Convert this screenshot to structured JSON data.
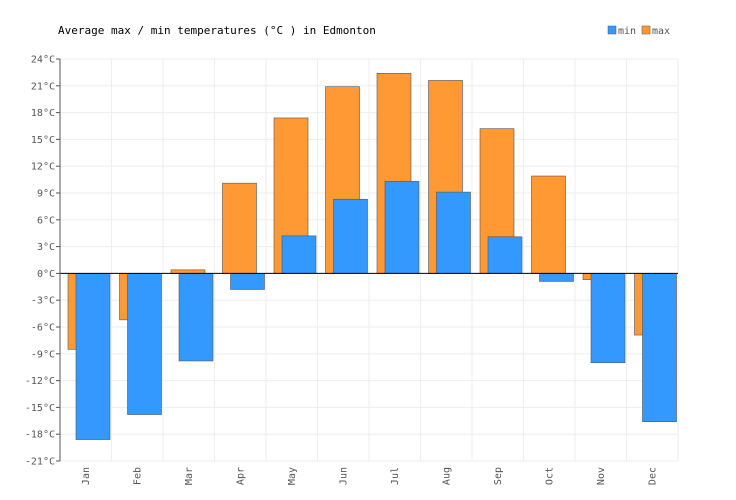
{
  "chart_data": {
    "type": "bar",
    "title": "Average max / min temperatures (°C ) in Edmonton",
    "categories": [
      "Jan",
      "Feb",
      "Mar",
      "Apr",
      "May",
      "Jun",
      "Jul",
      "Aug",
      "Sep",
      "Oct",
      "Nov",
      "Dec"
    ],
    "series": [
      {
        "name": "max",
        "color": "#ff9933",
        "values": [
          -8.5,
          -5.2,
          0.4,
          10.1,
          17.4,
          20.9,
          22.4,
          21.6,
          16.2,
          10.9,
          -0.7,
          -6.9
        ]
      },
      {
        "name": "min",
        "color": "#3399ff",
        "values": [
          -18.6,
          -15.8,
          -9.8,
          -1.8,
          4.2,
          8.3,
          10.3,
          9.1,
          4.1,
          -0.9,
          -10.0,
          -16.6
        ]
      }
    ],
    "ylim": [
      -21,
      24
    ],
    "yticks": [
      "-21°C",
      "-18°C",
      "-15°C",
      "-12°C",
      "-9°C",
      "-6°C",
      "-3°C",
      "0°C",
      "3°C",
      "6°C",
      "9°C",
      "12°C",
      "15°C",
      "18°C",
      "21°C",
      "24°C"
    ],
    "ytick_values": [
      -21,
      -18,
      -15,
      -12,
      -9,
      -6,
      -3,
      0,
      3,
      6,
      9,
      12,
      15,
      18,
      21,
      24
    ],
    "legend": {
      "position": "top-right",
      "entries": [
        "min",
        "max"
      ]
    },
    "grid": true
  }
}
